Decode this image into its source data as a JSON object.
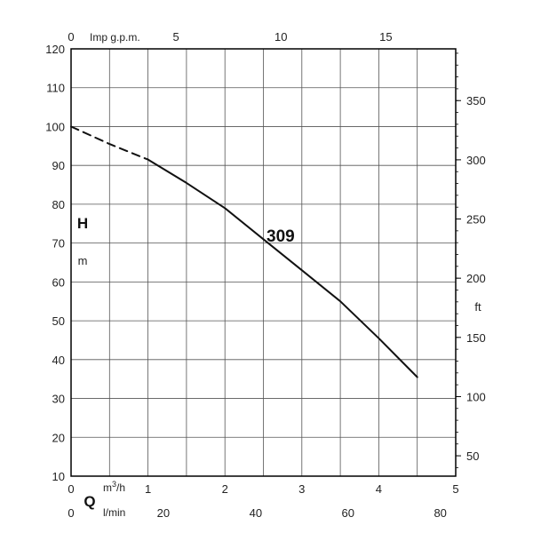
{
  "chart_data": {
    "type": "line",
    "title": "",
    "x_axis": {
      "unit_label": "m³/h",
      "symbol": "Q",
      "range": [
        0,
        5
      ],
      "ticks": [
        0,
        1,
        2,
        3,
        4,
        5
      ],
      "secondary_bottom": {
        "unit_label": "l/min",
        "ticks": [
          0,
          20,
          40,
          60,
          80
        ]
      },
      "top": {
        "unit_label": "Imp g.p.m.",
        "ticks": [
          0,
          5,
          10,
          15
        ]
      }
    },
    "y_axis": {
      "symbol": "H",
      "unit_label": "m",
      "range": [
        10,
        120
      ],
      "ticks": [
        10,
        20,
        30,
        40,
        50,
        60,
        70,
        80,
        90,
        100,
        110,
        120
      ],
      "right": {
        "unit_label": "ft",
        "ticks": [
          50,
          100,
          150,
          200,
          250,
          300,
          350
        ]
      }
    },
    "grid": true,
    "series": [
      {
        "name": "309",
        "segments": [
          {
            "style": "dashed",
            "points": [
              [
                0,
                100
              ],
              [
                0.5,
                95.5
              ],
              [
                1.0,
                91.5
              ]
            ]
          },
          {
            "style": "solid",
            "points": [
              [
                1.0,
                91.5
              ],
              [
                1.5,
                85.5
              ],
              [
                2.0,
                79
              ],
              [
                2.5,
                71
              ],
              [
                3.0,
                63
              ],
              [
                3.5,
                55
              ],
              [
                4.0,
                45.5
              ],
              [
                4.5,
                35.5
              ]
            ]
          }
        ]
      }
    ]
  }
}
